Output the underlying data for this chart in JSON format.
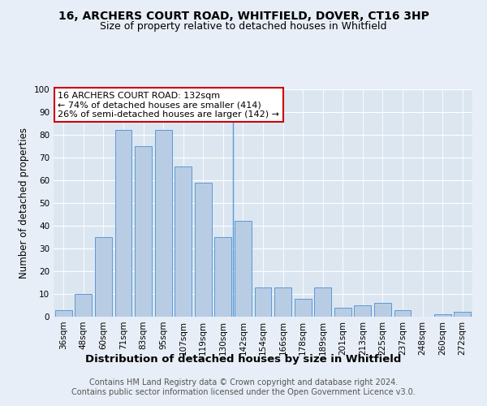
{
  "title1": "16, ARCHERS COURT ROAD, WHITFIELD, DOVER, CT16 3HP",
  "title2": "Size of property relative to detached houses in Whitfield",
  "xlabel": "Distribution of detached houses by size in Whitfield",
  "ylabel": "Number of detached properties",
  "categories": [
    "36sqm",
    "48sqm",
    "60sqm",
    "71sqm",
    "83sqm",
    "95sqm",
    "107sqm",
    "119sqm",
    "130sqm",
    "142sqm",
    "154sqm",
    "166sqm",
    "178sqm",
    "189sqm",
    "201sqm",
    "213sqm",
    "225sqm",
    "237sqm",
    "248sqm",
    "260sqm",
    "272sqm"
  ],
  "values": [
    3,
    10,
    35,
    82,
    75,
    82,
    66,
    59,
    35,
    42,
    13,
    13,
    8,
    13,
    4,
    5,
    6,
    3,
    0,
    1,
    2
  ],
  "bar_color": "#b8cce4",
  "bar_edge_color": "#5a9bd5",
  "vline_x": 8.5,
  "annotation_text": "16 ARCHERS COURT ROAD: 132sqm\n← 74% of detached houses are smaller (414)\n26% of semi-detached houses are larger (142) →",
  "annotation_box_color": "#ffffff",
  "annotation_box_edge_color": "#cc0000",
  "background_color": "#e8eef7",
  "plot_bg_color": "#dce6f1",
  "footer_text": "Contains HM Land Registry data © Crown copyright and database right 2024.\nContains public sector information licensed under the Open Government Licence v3.0.",
  "ylim": [
    0,
    100
  ],
  "yticks": [
    0,
    10,
    20,
    30,
    40,
    50,
    60,
    70,
    80,
    90,
    100
  ],
  "title1_fontsize": 10,
  "title2_fontsize": 9,
  "xlabel_fontsize": 9.5,
  "ylabel_fontsize": 8.5,
  "tick_fontsize": 7.5,
  "footer_fontsize": 7,
  "annotation_fontsize": 8
}
